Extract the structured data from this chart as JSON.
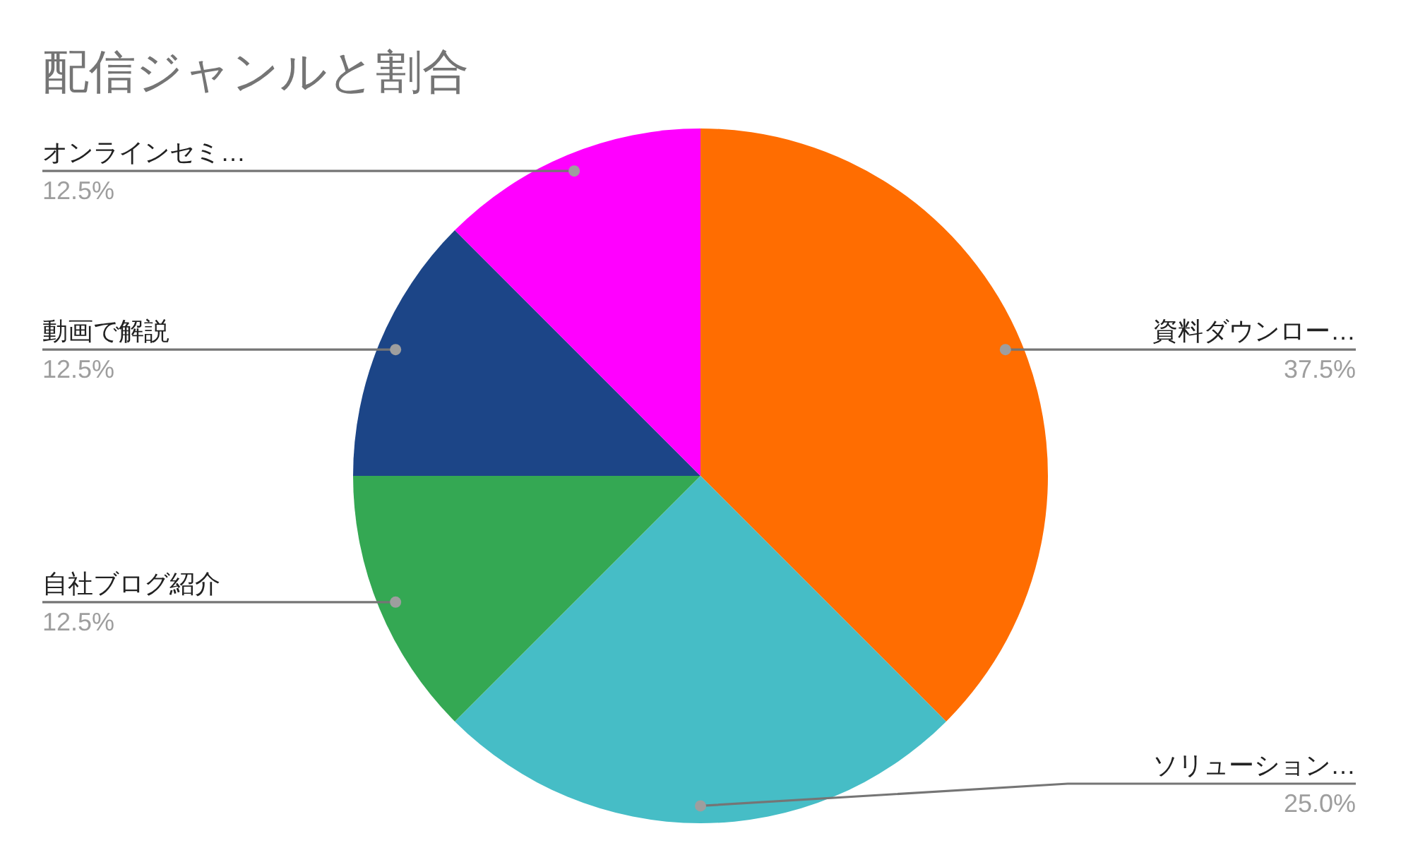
{
  "chart_data": {
    "type": "pie",
    "title": "配信ジャンルと割合",
    "categories": [
      "資料ダウンロー…",
      "ソリューション…",
      "自社ブログ紹介",
      "動画で解説",
      "オンラインセミ…"
    ],
    "values": [
      37.5,
      25.0,
      12.5,
      12.5,
      12.5
    ],
    "colors": [
      "#ff6d01",
      "#46bdc6",
      "#34a853",
      "#1c4587",
      "#ff00ff"
    ],
    "value_labels": [
      "37.5%",
      "25.0%",
      "12.5%",
      "12.5%",
      "12.5%"
    ]
  }
}
